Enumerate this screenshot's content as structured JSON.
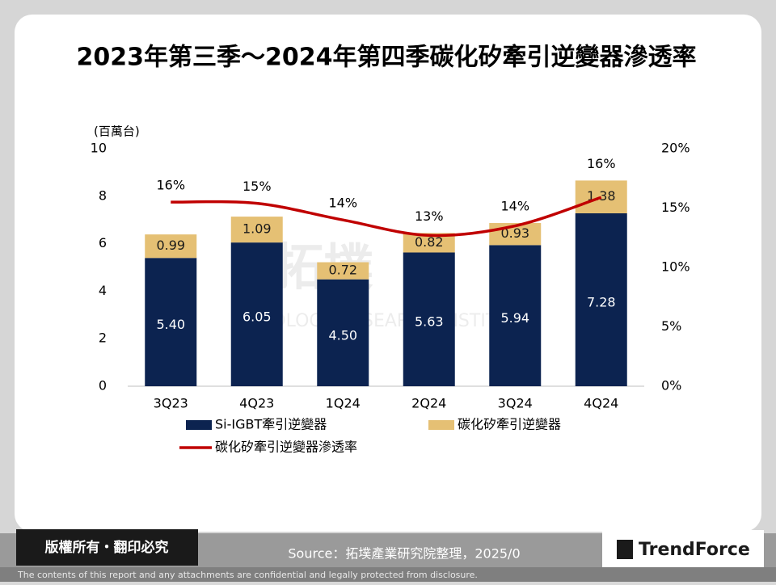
{
  "chart_data": {
    "type": "bar",
    "stacked": true,
    "title": "2023年第三季～2024年第四季碳化矽牽引逆變器滲透率",
    "y_label": "(百萬台)",
    "categories": [
      "3Q23",
      "4Q23",
      "1Q24",
      "2Q24",
      "3Q24",
      "4Q24"
    ],
    "series": [
      {
        "name": "Si-IGBT牽引逆變器",
        "color": "#0c2350",
        "values": [
          5.4,
          6.05,
          4.5,
          5.63,
          5.94,
          7.28
        ],
        "value_labels": [
          "5.40",
          "6.05",
          "4.50",
          "5.63",
          "5.94",
          "7.28"
        ]
      },
      {
        "name": "碳化矽牽引逆變器",
        "color": "#e5c074",
        "values": [
          0.99,
          1.09,
          0.72,
          0.82,
          0.93,
          1.38
        ],
        "value_labels": [
          "0.99",
          "1.09",
          "0.72",
          "0.82",
          "0.93",
          "1.38"
        ]
      },
      {
        "name": "碳化矽牽引逆變器滲透率",
        "type": "line",
        "axis": "y2",
        "color": "#c00000",
        "values": [
          15.5,
          15.4,
          14.0,
          12.7,
          13.5,
          15.9
        ],
        "value_labels": [
          "16%",
          "15%",
          "14%",
          "13%",
          "14%",
          "16%"
        ]
      }
    ],
    "ylim": [
      0,
      10
    ],
    "yticks": [
      0,
      2,
      4,
      6,
      8,
      10
    ],
    "y2lim": [
      0,
      20
    ],
    "y2ticks": [
      {
        "value": 0,
        "label": "0%"
      },
      {
        "value": 5,
        "label": "5%"
      },
      {
        "value": 10,
        "label": "10%"
      },
      {
        "value": 15,
        "label": "15%"
      },
      {
        "value": 20,
        "label": "20%"
      }
    ],
    "grid": false
  },
  "slide": {
    "watermark": [
      "拓墣",
      "TOPOLOGY RESEARCH INSTITUTE"
    ],
    "copyright": "版權所有・翻印必究",
    "source": "Source：拓墣產業研究院整理，2025/0",
    "brand": "TrendForce",
    "disclaimer": "The contents of this report and any attachments are confidential and legally protected from disclosure."
  }
}
